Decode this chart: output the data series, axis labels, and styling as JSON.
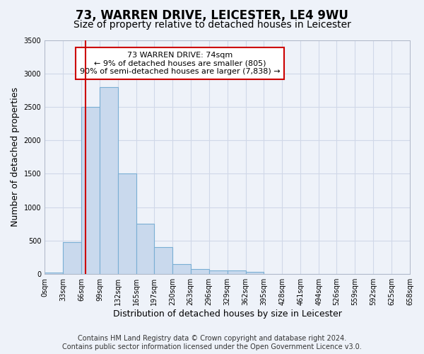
{
  "title": "73, WARREN DRIVE, LEICESTER, LE4 9WU",
  "subtitle": "Size of property relative to detached houses in Leicester",
  "xlabel": "Distribution of detached houses by size in Leicester",
  "ylabel": "Number of detached properties",
  "bin_edges": [
    0,
    33,
    66,
    99,
    132,
    165,
    197,
    230,
    263,
    296,
    329,
    362,
    395,
    428,
    461,
    494,
    526,
    559,
    592,
    625,
    658
  ],
  "bar_heights": [
    20,
    480,
    2500,
    2800,
    1500,
    750,
    400,
    150,
    80,
    55,
    50,
    30,
    0,
    0,
    0,
    0,
    0,
    0,
    0,
    0
  ],
  "bar_color": "#c9d9ed",
  "bar_edge_color": "#7aafd4",
  "vline_x": 74,
  "vline_color": "#cc0000",
  "annotation_text": "73 WARREN DRIVE: 74sqm\n← 9% of detached houses are smaller (805)\n90% of semi-detached houses are larger (7,838) →",
  "annotation_box_facecolor": "#ffffff",
  "annotation_box_edgecolor": "#cc0000",
  "ylim": [
    0,
    3500
  ],
  "yticks": [
    0,
    500,
    1000,
    1500,
    2000,
    2500,
    3000,
    3500
  ],
  "tick_labels": [
    "0sqm",
    "33sqm",
    "66sqm",
    "99sqm",
    "132sqm",
    "165sqm",
    "197sqm",
    "230sqm",
    "263sqm",
    "296sqm",
    "329sqm",
    "362sqm",
    "395sqm",
    "428sqm",
    "461sqm",
    "494sqm",
    "526sqm",
    "559sqm",
    "592sqm",
    "625sqm",
    "658sqm"
  ],
  "footer_line1": "Contains HM Land Registry data © Crown copyright and database right 2024.",
  "footer_line2": "Contains public sector information licensed under the Open Government Licence v3.0.",
  "bg_color": "#eef2f9",
  "grid_color": "#d0d8e8",
  "title_fontsize": 12,
  "subtitle_fontsize": 10,
  "axis_label_fontsize": 9,
  "tick_fontsize": 7,
  "footer_fontsize": 7,
  "annotation_fontsize": 8
}
